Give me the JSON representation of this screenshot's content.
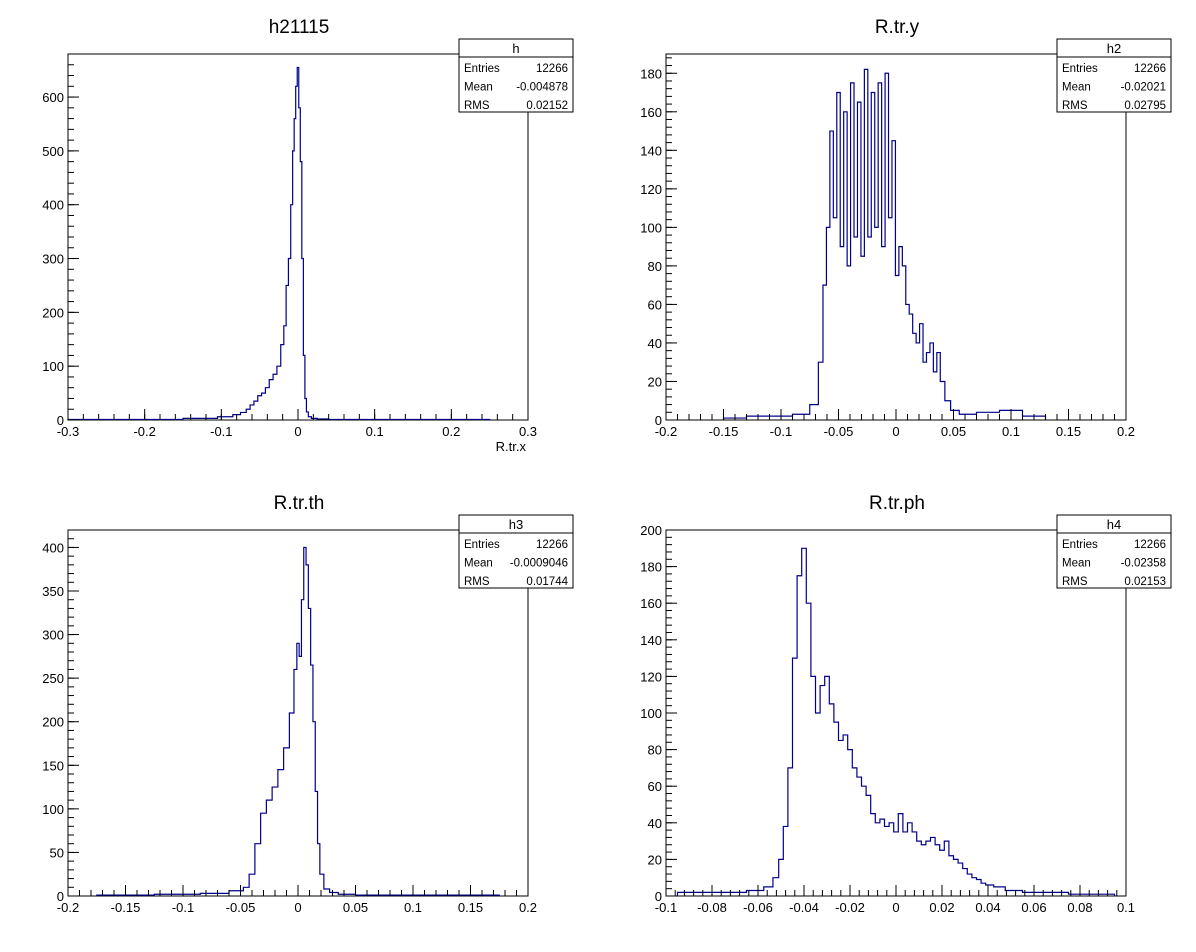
{
  "line_color": "#00008b",
  "pads": [
    {
      "title": "h21115",
      "xlabel": "R.tr.x",
      "stats": {
        "name": "h",
        "rows": [
          {
            "label": "Entries",
            "value": "12266"
          },
          {
            "label": "Mean",
            "value": "-0.004878"
          },
          {
            "label": "RMS",
            "value": "0.02152"
          }
        ]
      }
    },
    {
      "title": "R.tr.y",
      "xlabel": "",
      "stats": {
        "name": "h2",
        "rows": [
          {
            "label": "Entries",
            "value": "12266"
          },
          {
            "label": "Mean",
            "value": "-0.02021"
          },
          {
            "label": "RMS",
            "value": "0.02795"
          }
        ]
      }
    },
    {
      "title": "R.tr.th",
      "xlabel": "",
      "stats": {
        "name": "h3",
        "rows": [
          {
            "label": "Entries",
            "value": "12266"
          },
          {
            "label": "Mean",
            "value": "-0.0009046"
          },
          {
            "label": "RMS",
            "value": "0.01744"
          }
        ]
      }
    },
    {
      "title": "R.tr.ph",
      "xlabel": "",
      "stats": {
        "name": "h4",
        "rows": [
          {
            "label": "Entries",
            "value": "12266"
          },
          {
            "label": "Mean",
            "value": "-0.02358"
          },
          {
            "label": "RMS",
            "value": "0.02153"
          }
        ]
      }
    }
  ],
  "chart_data": [
    {
      "type": "histogram",
      "title": "h21115",
      "xlabel": "R.tr.x",
      "ylabel": "",
      "xlim": [
        -0.3,
        0.3
      ],
      "ylim": [
        0,
        680
      ],
      "grid": false,
      "xticks": [
        "-0.3",
        "-0.2",
        "-0.1",
        "0",
        "0.1",
        "0.2",
        "0.3"
      ],
      "yticks": [
        "0",
        "100",
        "200",
        "300",
        "400",
        "500",
        "600"
      ],
      "series": [
        {
          "x": [
            -0.27,
            -0.18,
            -0.12,
            -0.09,
            -0.08,
            -0.07,
            -0.065,
            -0.06,
            -0.055,
            -0.05,
            -0.045,
            -0.04,
            -0.035,
            -0.03,
            -0.025,
            -0.02,
            -0.017,
            -0.014,
            -0.011,
            -0.008,
            -0.006,
            -0.004,
            -0.002,
            0,
            0.002,
            0.004,
            0.006,
            0.008,
            0.01,
            0.012,
            0.015,
            0.02,
            0.03,
            0.05,
            0.1,
            0.2
          ],
          "y": [
            1,
            1,
            3,
            6,
            10,
            14,
            20,
            28,
            35,
            45,
            50,
            60,
            75,
            85,
            100,
            140,
            175,
            250,
            300,
            400,
            500,
            560,
            620,
            655,
            580,
            480,
            300,
            120,
            40,
            15,
            6,
            3,
            2,
            1,
            1,
            1
          ]
        }
      ]
    },
    {
      "type": "histogram",
      "title": "R.tr.y",
      "xlabel": "",
      "ylabel": "",
      "xlim": [
        -0.2,
        0.2
      ],
      "ylim": [
        0,
        190
      ],
      "grid": false,
      "xticks": [
        "-0.2",
        "-0.15",
        "-0.1",
        "-0.05",
        "0",
        "0.05",
        "0.1",
        "0.15",
        "0.2"
      ],
      "yticks": [
        "0",
        "20",
        "40",
        "60",
        "80",
        "100",
        "120",
        "140",
        "160",
        "180"
      ],
      "series": [
        {
          "x": [
            -0.14,
            -0.12,
            -0.1,
            -0.08,
            -0.07,
            -0.065,
            -0.062,
            -0.059,
            -0.056,
            -0.053,
            -0.05,
            -0.047,
            -0.044,
            -0.041,
            -0.038,
            -0.035,
            -0.032,
            -0.029,
            -0.026,
            -0.023,
            -0.02,
            -0.017,
            -0.014,
            -0.011,
            -0.008,
            -0.005,
            -0.002,
            0.001,
            0.004,
            0.007,
            0.01,
            0.013,
            0.016,
            0.019,
            0.022,
            0.025,
            0.028,
            0.031,
            0.034,
            0.037,
            0.04,
            0.045,
            0.05,
            0.06,
            0.08,
            0.1,
            0.12
          ],
          "y": [
            1,
            2,
            2,
            3,
            8,
            30,
            70,
            100,
            150,
            105,
            170,
            90,
            160,
            80,
            175,
            95,
            165,
            85,
            182,
            95,
            170,
            100,
            175,
            90,
            180,
            105,
            145,
            75,
            90,
            80,
            60,
            55,
            45,
            40,
            50,
            30,
            35,
            40,
            25,
            35,
            20,
            10,
            5,
            3,
            4,
            5,
            2
          ]
        }
      ]
    },
    {
      "type": "histogram",
      "title": "R.tr.th",
      "xlabel": "",
      "ylabel": "",
      "xlim": [
        -0.2,
        0.2
      ],
      "ylim": [
        0,
        420
      ],
      "grid": false,
      "xticks": [
        "-0.2",
        "-0.15",
        "-0.1",
        "-0.05",
        "0",
        "0.05",
        "0.1",
        "0.15",
        "0.2"
      ],
      "yticks": [
        "0",
        "50",
        "100",
        "150",
        "200",
        "250",
        "300",
        "350",
        "400"
      ],
      "series": [
        {
          "x": [
            -0.15,
            -0.1,
            -0.07,
            -0.05,
            -0.045,
            -0.04,
            -0.035,
            -0.03,
            -0.025,
            -0.02,
            -0.015,
            -0.01,
            -0.005,
            -0.002,
            0,
            0.002,
            0.004,
            0.006,
            0.008,
            0.01,
            0.012,
            0.014,
            0.016,
            0.018,
            0.02,
            0.025,
            0.03,
            0.04,
            0.06,
            0.1,
            0.15
          ],
          "y": [
            1,
            2,
            3,
            6,
            10,
            25,
            60,
            95,
            110,
            125,
            145,
            170,
            210,
            260,
            290,
            275,
            340,
            400,
            380,
            330,
            265,
            200,
            120,
            60,
            25,
            8,
            4,
            2,
            1,
            1,
            1
          ]
        }
      ]
    },
    {
      "type": "histogram",
      "title": "R.tr.ph",
      "xlabel": "",
      "ylabel": "",
      "xlim": [
        -0.1,
        0.1
      ],
      "ylim": [
        0,
        200
      ],
      "grid": false,
      "xticks": [
        "-0.1",
        "-0.08",
        "-0.06",
        "-0.04",
        "-0.02",
        "0",
        "0.02",
        "0.04",
        "0.06",
        "0.08",
        "0.1"
      ],
      "yticks": [
        "0",
        "20",
        "40",
        "60",
        "80",
        "100",
        "120",
        "140",
        "160",
        "180",
        "200"
      ],
      "series": [
        {
          "x": [
            -0.09,
            -0.08,
            -0.07,
            -0.06,
            -0.055,
            -0.052,
            -0.05,
            -0.048,
            -0.046,
            -0.044,
            -0.042,
            -0.04,
            -0.038,
            -0.036,
            -0.034,
            -0.032,
            -0.03,
            -0.028,
            -0.026,
            -0.024,
            -0.022,
            -0.02,
            -0.018,
            -0.016,
            -0.014,
            -0.012,
            -0.01,
            -0.008,
            -0.006,
            -0.004,
            -0.002,
            0,
            0.002,
            0.004,
            0.006,
            0.008,
            0.01,
            0.012,
            0.014,
            0.016,
            0.018,
            0.02,
            0.022,
            0.024,
            0.026,
            0.028,
            0.03,
            0.032,
            0.034,
            0.036,
            0.038,
            0.04,
            0.045,
            0.05,
            0.06,
            0.07,
            0.08,
            0.09
          ],
          "y": [
            2,
            2,
            2,
            3,
            5,
            10,
            20,
            38,
            70,
            130,
            175,
            190,
            160,
            120,
            100,
            115,
            120,
            105,
            95,
            85,
            88,
            80,
            70,
            65,
            60,
            55,
            45,
            40,
            42,
            38,
            40,
            35,
            45,
            35,
            40,
            35,
            30,
            28,
            30,
            32,
            28,
            25,
            30,
            22,
            20,
            18,
            15,
            12,
            10,
            9,
            7,
            6,
            5,
            3,
            2,
            2,
            1,
            1
          ]
        }
      ]
    }
  ]
}
